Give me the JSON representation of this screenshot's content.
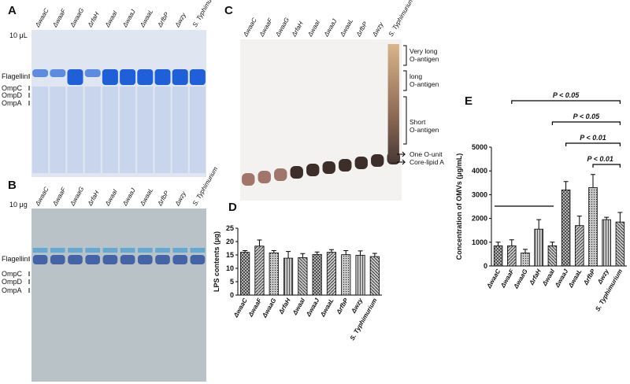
{
  "gels": [
    {
      "label": "A",
      "note": "10 μL",
      "lanes": [
        "ΔwaaC",
        "ΔwaaF",
        "ΔwaaG",
        "ΔrfaH",
        "ΔwaaI",
        "ΔwaaJ",
        "ΔwaaL",
        "ΔrfbP",
        "Δwzy",
        "S. Typhimurium"
      ],
      "markers": [
        "Flagellin",
        "OmpC",
        "OmpD",
        "OmpA"
      ]
    },
    {
      "label": "B",
      "note": "10 μg",
      "lanes": [
        "ΔwaaC",
        "ΔwaaF",
        "ΔwaaG",
        "ΔrfaH",
        "ΔwaaI",
        "ΔwaaJ",
        "ΔwaaL",
        "ΔrfbP",
        "Δwzy",
        "S. Typhimurium"
      ],
      "markers": [
        "Flagellin",
        "OmpC",
        "OmpD",
        "OmpA"
      ]
    },
    {
      "label": "C",
      "lanes": [
        "ΔwaaC",
        "ΔwaaF",
        "ΔwaaG",
        "ΔrfaH",
        "ΔwaaI",
        "ΔwaaJ",
        "ΔwaaL",
        "ΔrfbP",
        "Δwzy",
        "S. Typhimurium"
      ],
      "annotations": [
        {
          "lines": [
            "Very long",
            "O-antigen"
          ]
        },
        {
          "lines": [
            "long",
            "O-antigen"
          ]
        },
        {
          "lines": [
            "Short",
            "O-antigen"
          ]
        },
        {
          "lines": [
            "One O-unit"
          ]
        },
        {
          "lines": [
            "Core-lipid A"
          ]
        }
      ]
    }
  ],
  "chart_data": [
    {
      "type": "bar",
      "label": "D",
      "ylabel": "LPS contents (μg)",
      "categories": [
        "ΔwaaC",
        "ΔwaaF",
        "ΔwaaG",
        "ΔrfaH",
        "ΔwaaI",
        "ΔwaaJ",
        "ΔwaaL",
        "ΔrfbP",
        "Δwzy",
        "S. Typhimurium"
      ],
      "values": [
        16,
        18.3,
        15.8,
        13.8,
        14,
        15.2,
        16,
        15.1,
        14.9,
        14.4
      ],
      "errors": [
        0.6,
        2.3,
        0.8,
        2.5,
        1.5,
        0.9,
        1,
        1.5,
        1.6,
        1.2
      ],
      "color": "#c8c8c8",
      "ylim": [
        0,
        25
      ],
      "yticks": [
        0,
        5,
        10,
        15,
        20,
        25
      ]
    },
    {
      "type": "bar",
      "label": "E",
      "ylabel": "Concentration of OMVs (μg/mL)",
      "categories": [
        "ΔwaaC",
        "ΔwaaF",
        "ΔwaaG",
        "ΔrfaH",
        "ΔwaaI",
        "ΔwaaJ",
        "ΔwaaL",
        "ΔrfbP",
        "Δwzy",
        "S. Typhimurium"
      ],
      "values": [
        850,
        850,
        550,
        1550,
        850,
        3200,
        1700,
        3300,
        1950,
        1850
      ],
      "errors": [
        150,
        250,
        150,
        400,
        150,
        350,
        400,
        550,
        100,
        400
      ],
      "color": "#c8c8c8",
      "ylim": [
        0,
        5000
      ],
      "yticks": [
        0,
        1000,
        2000,
        3000,
        4000,
        5000
      ],
      "comparisons": [
        {
          "text": "P < 0.05",
          "from": "ΔwaaF",
          "to": "S. Typhimurium"
        },
        {
          "text": "P < 0.05",
          "from": "ΔwaaI",
          "to": "S. Typhimurium"
        },
        {
          "text": "P < 0.01",
          "from": "ΔwaaJ",
          "to": "S. Typhimurium"
        },
        {
          "text": "P < 0.01",
          "from": "ΔrfbP",
          "to": "S. Typhimurium"
        }
      ]
    }
  ]
}
